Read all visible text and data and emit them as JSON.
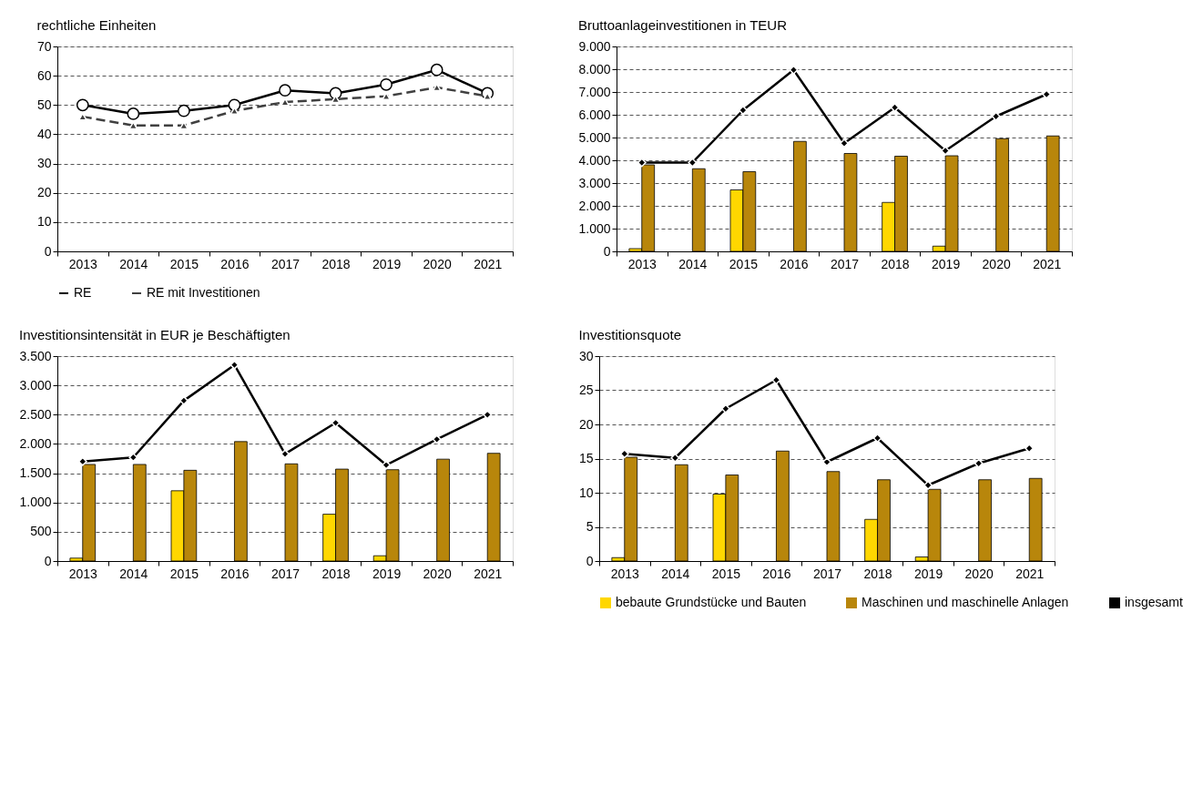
{
  "chart_data": [
    {
      "type": "line",
      "title": "rechtliche Einheiten",
      "categories": [
        "2013",
        "2014",
        "2015",
        "2016",
        "2017",
        "2018",
        "2019",
        "2020",
        "2021"
      ],
      "series": [
        {
          "name": "RE",
          "color": "#000000",
          "marker": "circle",
          "line_style": "solid",
          "values": [
            50,
            47,
            48,
            50,
            55,
            54,
            57,
            62,
            54
          ]
        },
        {
          "name": "RE mit Investitionen",
          "color": "#404040",
          "marker": "triangle",
          "line_style": "dashed",
          "values": [
            46,
            43,
            43,
            48,
            51,
            52,
            53,
            56,
            53
          ]
        }
      ],
      "ylim": [
        0,
        70
      ],
      "yticks": [
        0,
        10,
        20,
        30,
        40,
        50,
        60,
        70
      ],
      "grid": "y",
      "legend": "bottom"
    },
    {
      "type": "bar",
      "title": "Bruttoanlageinvestitionen in TEUR",
      "categories": [
        "2013",
        "2014",
        "2015",
        "2016",
        "2017",
        "2018",
        "2019",
        "2020",
        "2021"
      ],
      "series": [
        {
          "color": "#ffd700",
          "values": [
            120,
            null,
            2700,
            null,
            null,
            2150,
            230,
            null,
            null
          ]
        },
        {
          "color": "#b8860b",
          "values": [
            3800,
            3630,
            3500,
            4830,
            4300,
            4180,
            4200,
            4950,
            5070
          ]
        },
        {
          "type": "line",
          "color": "#000000",
          "marker": "diamond",
          "values": [
            3900,
            3900,
            6200,
            7970,
            4750,
            6320,
            4420,
            5930,
            6900
          ]
        }
      ],
      "ylim": [
        0,
        9000
      ],
      "yticks": [
        0,
        {
          "value": 1000,
          "label": "1.000"
        },
        {
          "value": 2000,
          "label": "2.000"
        },
        {
          "value": 3000,
          "label": "3.000"
        },
        {
          "value": 4000,
          "label": "4.000"
        },
        {
          "value": 5000,
          "label": "5.000"
        },
        {
          "value": 6000,
          "label": "6.000"
        },
        {
          "value": 7000,
          "label": "7.000"
        },
        {
          "value": 8000,
          "label": "8.000"
        },
        {
          "value": 9000,
          "label": "9.000"
        }
      ],
      "grid": "y"
    },
    {
      "type": "bar",
      "title": "Investitionsintensität in EUR je Beschäftigten",
      "categories": [
        "2013",
        "2014",
        "2015",
        "2016",
        "2017",
        "2018",
        "2019",
        "2020",
        "2021"
      ],
      "series": [
        {
          "color": "#ffd700",
          "values": [
            50,
            null,
            1200,
            null,
            null,
            800,
            90,
            null,
            null
          ]
        },
        {
          "color": "#b8860b",
          "values": [
            1650,
            1650,
            1550,
            2040,
            1660,
            1570,
            1560,
            1740,
            1840
          ]
        },
        {
          "type": "line",
          "color": "#000000",
          "marker": "diamond",
          "values": [
            1700,
            1770,
            2740,
            3350,
            1830,
            2360,
            1640,
            2080,
            2500
          ]
        }
      ],
      "ylim": [
        0,
        3500
      ],
      "yticks": [
        0,
        500,
        {
          "value": 1000,
          "label": "1.000"
        },
        {
          "value": 1500,
          "label": "1.500"
        },
        {
          "value": 2000,
          "label": "2.000"
        },
        {
          "value": 2500,
          "label": "2.500"
        },
        {
          "value": 3000,
          "label": "3.000"
        },
        {
          "value": 3500,
          "label": "3.500"
        }
      ],
      "grid": "y"
    },
    {
      "type": "bar",
      "title": "Investitionsquote",
      "categories": [
        "2013",
        "2014",
        "2015",
        "2016",
        "2017",
        "2018",
        "2019",
        "2020",
        "2021"
      ],
      "series": [
        {
          "name": "bebaute Grundstücke und Bauten",
          "color": "#ffd700",
          "values": [
            0.5,
            null,
            9.8,
            null,
            null,
            6.1,
            0.6,
            null,
            null
          ]
        },
        {
          "name": "Maschinen und maschinelle Anlagen",
          "color": "#b8860b",
          "values": [
            15.2,
            14.1,
            12.6,
            16.1,
            13.1,
            11.9,
            10.5,
            11.9,
            12.1
          ]
        },
        {
          "name": "insgesamt",
          "type": "line",
          "color": "#000000",
          "marker": "diamond",
          "values": [
            15.7,
            15.1,
            22.3,
            26.5,
            14.5,
            18.0,
            11.1,
            14.3,
            16.5
          ]
        }
      ],
      "ylim": [
        0,
        30
      ],
      "yticks": [
        0,
        5,
        10,
        15,
        20,
        25,
        30
      ],
      "grid": "y",
      "legend": "bottom"
    }
  ]
}
